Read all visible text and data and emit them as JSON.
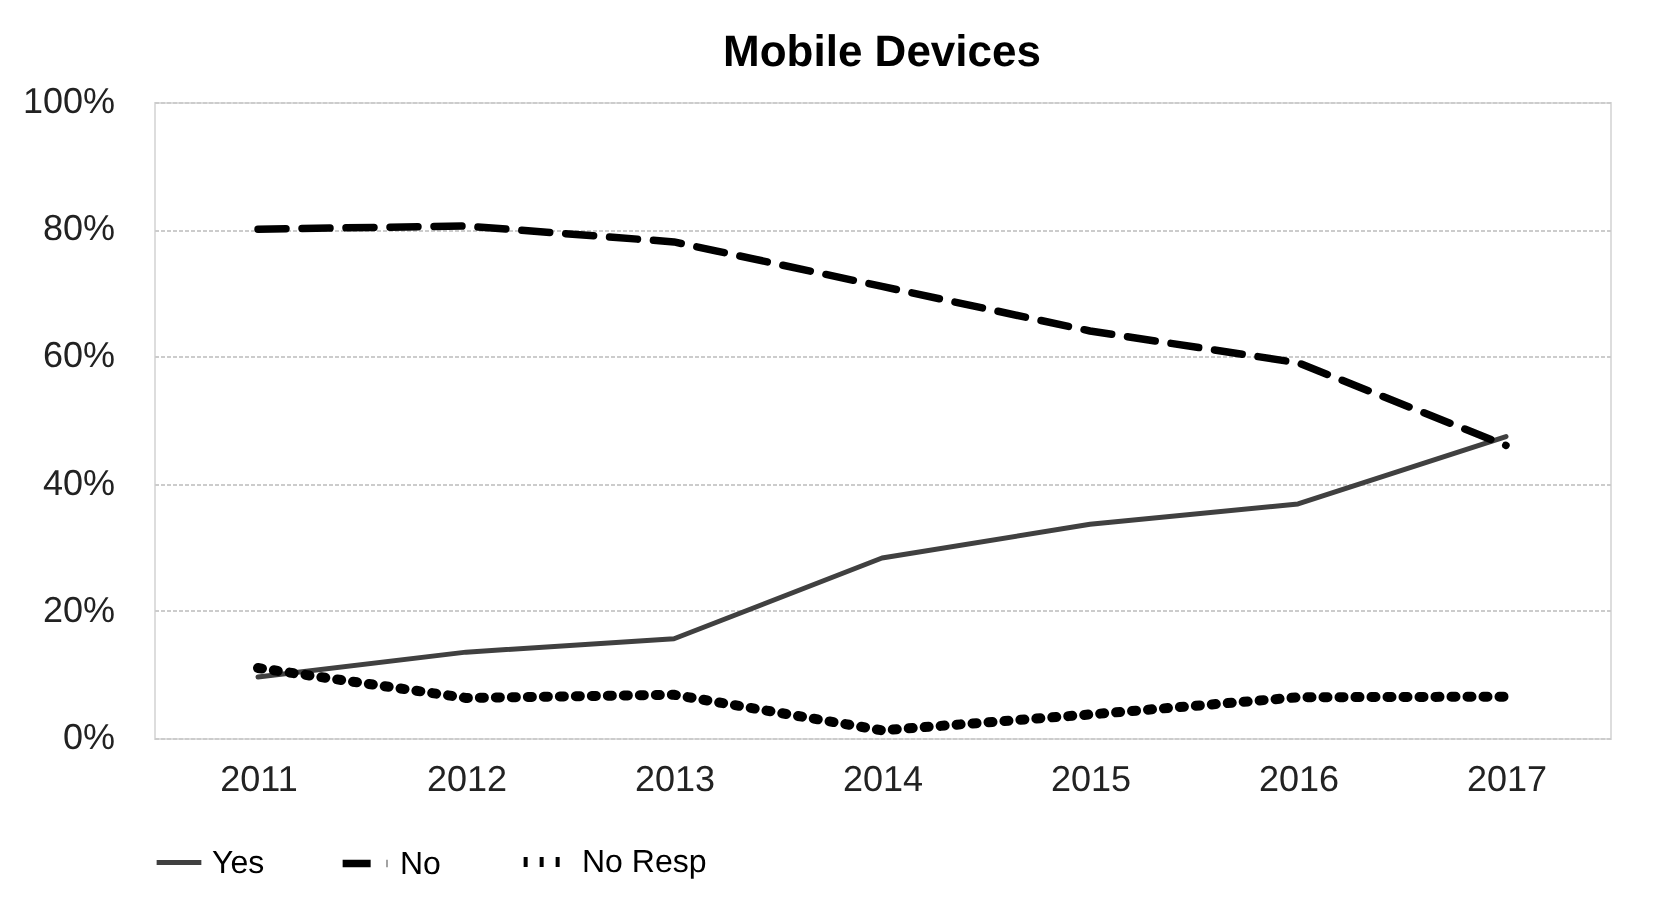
{
  "chart_data": {
    "type": "line",
    "title": "Mobile Devices",
    "categories": [
      "2011",
      "2012",
      "2013",
      "2014",
      "2015",
      "2016",
      "2017"
    ],
    "series": [
      {
        "name": "Yes",
        "color": "#404040",
        "line_style": "solid",
        "values": [
          9.6,
          13.5,
          15.6,
          28.3,
          33.6,
          36.8,
          47.4
        ]
      },
      {
        "name": "No",
        "color": "#000000",
        "line_style": "dashed",
        "values": [
          80,
          80.5,
          78,
          71,
          64,
          59,
          46
        ]
      },
      {
        "name": "No Resp",
        "color": "#000000",
        "line_style": "dotted",
        "values": [
          11,
          6.3,
          6.8,
          1.2,
          3.7,
          6.4,
          6.5
        ]
      }
    ],
    "ylim": [
      0,
      100
    ],
    "yticks": [
      {
        "value": 0,
        "label": "0%"
      },
      {
        "value": 20,
        "label": "20%"
      },
      {
        "value": 40,
        "label": "40%"
      },
      {
        "value": 60,
        "label": "60%"
      },
      {
        "value": 80,
        "label": "80%"
      },
      {
        "value": 100,
        "label": "100%"
      }
    ],
    "grid": "y",
    "legend": "bottom",
    "marker": "none"
  }
}
